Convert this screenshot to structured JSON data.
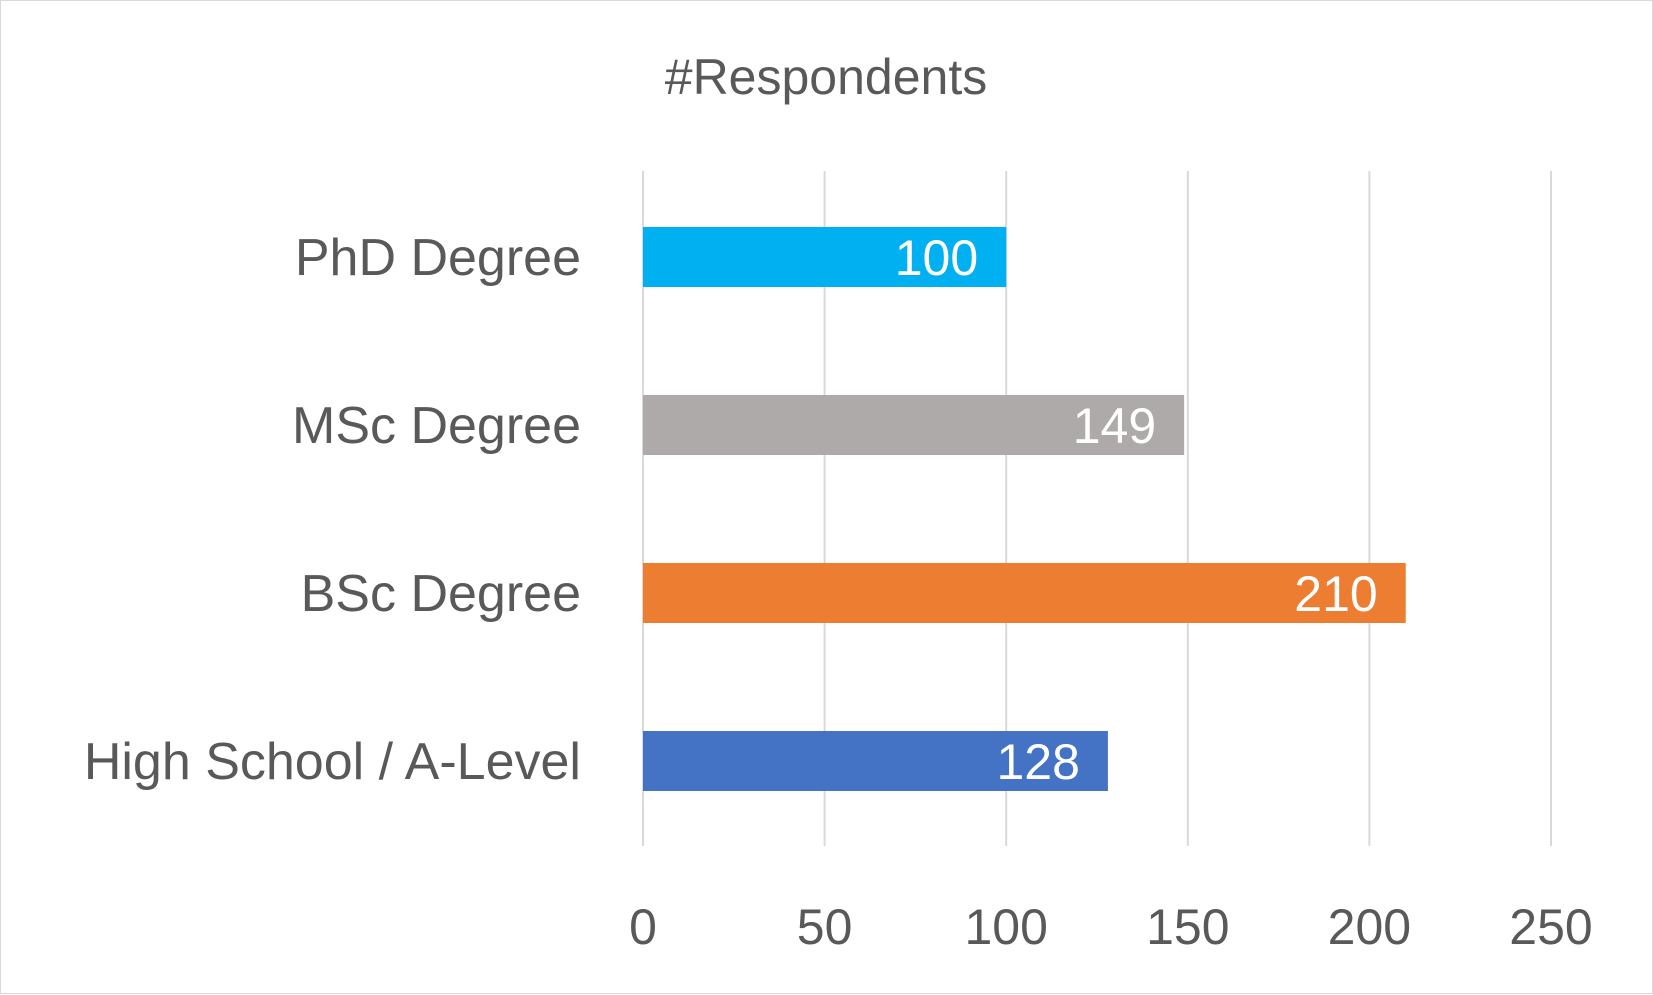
{
  "chart_data": {
    "type": "bar",
    "orientation": "horizontal",
    "title": "#Respondents",
    "xlabel": "",
    "ylabel": "",
    "categories": [
      "PhD Degree",
      "MSc Degree",
      "BSc Degree",
      "High School / A-Level"
    ],
    "values": [
      100,
      149,
      210,
      128
    ],
    "colors": [
      "#00b0f0",
      "#aeaaaa",
      "#ed7d31",
      "#4472c4"
    ],
    "xlim": [
      0,
      250
    ],
    "ticks": [
      0,
      50,
      100,
      150,
      200,
      250
    ],
    "tick_labels": [
      "0",
      "50",
      "100",
      "150",
      "200",
      "250"
    ],
    "grid": true,
    "legend": "none",
    "data_labels": true
  }
}
